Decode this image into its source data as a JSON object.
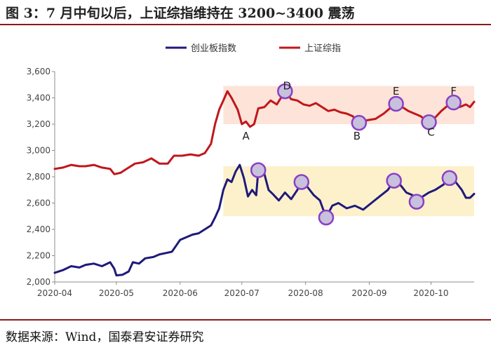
{
  "header": {
    "title": "图 3：7 月中旬以后，上证综指维持在 3200~3400 震荡"
  },
  "footer": {
    "source": "数据来源：Wind，国泰君安证券研究"
  },
  "colors": {
    "chinext": "#1f1a7a",
    "sse": "#c0171b",
    "sse_band": "#fde3d8",
    "chinext_band": "#fdf1cc",
    "marker": "#8a3fc4"
  },
  "chart_data": {
    "type": "line",
    "title": "",
    "xlabel": "",
    "ylabel": "",
    "ylim": [
      2000,
      3600
    ],
    "yticks": [
      2000,
      2200,
      2400,
      2600,
      2800,
      3000,
      3200,
      3400,
      3600
    ],
    "ytick_labels": [
      "2,000",
      "2,200",
      "2,400",
      "2,600",
      "2,800",
      "3,000",
      "3,200",
      "3,400",
      "3,600"
    ],
    "xlim": [
      "2020-04-01",
      "2020-10-22"
    ],
    "xticks": [
      "2020-04",
      "2020-05",
      "2020-06",
      "2020-07",
      "2020-08",
      "2020-09",
      "2020-10"
    ],
    "grid": false,
    "legend_position": "top",
    "bands": [
      {
        "start": "2020-06-22",
        "end": "2020-10-22",
        "low": 3200,
        "high": 3490,
        "color": "#fde3d8"
      },
      {
        "start": "2020-06-22",
        "end": "2020-10-22",
        "low": 2500,
        "high": 2880,
        "color": "#fdf1cc"
      }
    ],
    "annotations": [
      {
        "text": "A",
        "x": "2020-07-03",
        "y": 3110
      },
      {
        "text": "D",
        "x": "2020-07-23",
        "y": 3490
      },
      {
        "text": "B",
        "x": "2020-08-26",
        "y": 3110
      },
      {
        "text": "E",
        "x": "2020-09-14",
        "y": 3450
      },
      {
        "text": "C",
        "x": "2020-10-01",
        "y": 3140
      },
      {
        "text": "F",
        "x": "2020-10-12",
        "y": 3450
      }
    ],
    "markers": [
      {
        "series": "上证综指",
        "x": "2020-07-22",
        "y": 3450
      },
      {
        "series": "上证综指",
        "x": "2020-08-27",
        "y": 3210
      },
      {
        "series": "上证综指",
        "x": "2020-09-14",
        "y": 3355
      },
      {
        "series": "上证综指",
        "x": "2020-09-30",
        "y": 3215
      },
      {
        "series": "上证综指",
        "x": "2020-10-12",
        "y": 3365
      },
      {
        "series": "创业板指数",
        "x": "2020-07-09",
        "y": 2850
      },
      {
        "series": "创业板指数",
        "x": "2020-07-30",
        "y": 2760
      },
      {
        "series": "创业板指数",
        "x": "2020-08-11",
        "y": 2490
      },
      {
        "series": "创业板指数",
        "x": "2020-09-13",
        "y": 2770
      },
      {
        "series": "创业板指数",
        "x": "2020-09-24",
        "y": 2610
      },
      {
        "series": "创业板指数",
        "x": "2020-10-10",
        "y": 2790
      }
    ],
    "series": [
      {
        "name": "创业板指数",
        "color": "#1f1a7a",
        "points": [
          [
            "2020-04-01",
            2070
          ],
          [
            "2020-04-05",
            2090
          ],
          [
            "2020-04-09",
            2120
          ],
          [
            "2020-04-13",
            2110
          ],
          [
            "2020-04-16",
            2130
          ],
          [
            "2020-04-20",
            2140
          ],
          [
            "2020-04-24",
            2120
          ],
          [
            "2020-04-28",
            2150
          ],
          [
            "2020-04-30",
            2100
          ],
          [
            "2020-05-01",
            2050
          ],
          [
            "2020-05-04",
            2055
          ],
          [
            "2020-05-07",
            2080
          ],
          [
            "2020-05-09",
            2150
          ],
          [
            "2020-05-12",
            2140
          ],
          [
            "2020-05-15",
            2180
          ],
          [
            "2020-05-19",
            2190
          ],
          [
            "2020-05-22",
            2210
          ],
          [
            "2020-05-25",
            2220
          ],
          [
            "2020-05-28",
            2230
          ],
          [
            "2020-06-01",
            2320
          ],
          [
            "2020-06-04",
            2340
          ],
          [
            "2020-06-07",
            2360
          ],
          [
            "2020-06-10",
            2370
          ],
          [
            "2020-06-13",
            2400
          ],
          [
            "2020-06-16",
            2430
          ],
          [
            "2020-06-18",
            2490
          ],
          [
            "2020-06-20",
            2560
          ],
          [
            "2020-06-22",
            2700
          ],
          [
            "2020-06-24",
            2780
          ],
          [
            "2020-06-26",
            2760
          ],
          [
            "2020-06-28",
            2840
          ],
          [
            "2020-06-30",
            2890
          ],
          [
            "2020-07-02",
            2790
          ],
          [
            "2020-07-04",
            2650
          ],
          [
            "2020-07-06",
            2700
          ],
          [
            "2020-07-08",
            2660
          ],
          [
            "2020-07-09",
            2850
          ],
          [
            "2020-07-12",
            2820
          ],
          [
            "2020-07-14",
            2700
          ],
          [
            "2020-07-16",
            2670
          ],
          [
            "2020-07-19",
            2620
          ],
          [
            "2020-07-22",
            2680
          ],
          [
            "2020-07-25",
            2630
          ],
          [
            "2020-07-28",
            2700
          ],
          [
            "2020-07-30",
            2760
          ],
          [
            "2020-08-02",
            2720
          ],
          [
            "2020-08-05",
            2660
          ],
          [
            "2020-08-08",
            2620
          ],
          [
            "2020-08-11",
            2490
          ],
          [
            "2020-08-14",
            2580
          ],
          [
            "2020-08-17",
            2600
          ],
          [
            "2020-08-21",
            2560
          ],
          [
            "2020-08-25",
            2580
          ],
          [
            "2020-08-29",
            2550
          ],
          [
            "2020-09-02",
            2600
          ],
          [
            "2020-09-06",
            2650
          ],
          [
            "2020-09-10",
            2700
          ],
          [
            "2020-09-13",
            2770
          ],
          [
            "2020-09-16",
            2740
          ],
          [
            "2020-09-19",
            2680
          ],
          [
            "2020-09-22",
            2660
          ],
          [
            "2020-09-24",
            2610
          ],
          [
            "2020-09-27",
            2650
          ],
          [
            "2020-09-30",
            2680
          ],
          [
            "2020-10-03",
            2700
          ],
          [
            "2020-10-07",
            2740
          ],
          [
            "2020-10-10",
            2790
          ],
          [
            "2020-10-13",
            2760
          ],
          [
            "2020-10-16",
            2700
          ],
          [
            "2020-10-18",
            2640
          ],
          [
            "2020-10-20",
            2640
          ],
          [
            "2020-10-22",
            2670
          ]
        ]
      },
      {
        "name": "上证综指",
        "color": "#c0171b",
        "points": [
          [
            "2020-04-01",
            2860
          ],
          [
            "2020-04-05",
            2870
          ],
          [
            "2020-04-09",
            2890
          ],
          [
            "2020-04-13",
            2880
          ],
          [
            "2020-04-16",
            2880
          ],
          [
            "2020-04-20",
            2890
          ],
          [
            "2020-04-24",
            2870
          ],
          [
            "2020-04-28",
            2860
          ],
          [
            "2020-04-30",
            2820
          ],
          [
            "2020-05-03",
            2830
          ],
          [
            "2020-05-07",
            2870
          ],
          [
            "2020-05-10",
            2900
          ],
          [
            "2020-05-14",
            2910
          ],
          [
            "2020-05-18",
            2940
          ],
          [
            "2020-05-22",
            2900
          ],
          [
            "2020-05-26",
            2900
          ],
          [
            "2020-05-29",
            2960
          ],
          [
            "2020-06-02",
            2960
          ],
          [
            "2020-06-06",
            2970
          ],
          [
            "2020-06-10",
            2960
          ],
          [
            "2020-06-13",
            2980
          ],
          [
            "2020-06-16",
            3050
          ],
          [
            "2020-06-18",
            3200
          ],
          [
            "2020-06-20",
            3310
          ],
          [
            "2020-06-22",
            3380
          ],
          [
            "2020-06-24",
            3450
          ],
          [
            "2020-06-26",
            3400
          ],
          [
            "2020-06-29",
            3310
          ],
          [
            "2020-07-01",
            3200
          ],
          [
            "2020-07-03",
            3220
          ],
          [
            "2020-07-05",
            3180
          ],
          [
            "2020-07-07",
            3200
          ],
          [
            "2020-07-09",
            3320
          ],
          [
            "2020-07-12",
            3330
          ],
          [
            "2020-07-15",
            3380
          ],
          [
            "2020-07-18",
            3350
          ],
          [
            "2020-07-20",
            3400
          ],
          [
            "2020-07-22",
            3450
          ],
          [
            "2020-07-25",
            3390
          ],
          [
            "2020-07-28",
            3380
          ],
          [
            "2020-07-31",
            3350
          ],
          [
            "2020-08-03",
            3340
          ],
          [
            "2020-08-06",
            3360
          ],
          [
            "2020-08-09",
            3330
          ],
          [
            "2020-08-12",
            3300
          ],
          [
            "2020-08-15",
            3310
          ],
          [
            "2020-08-18",
            3290
          ],
          [
            "2020-08-21",
            3280
          ],
          [
            "2020-08-24",
            3260
          ],
          [
            "2020-08-27",
            3210
          ],
          [
            "2020-08-31",
            3230
          ],
          [
            "2020-09-04",
            3240
          ],
          [
            "2020-09-08",
            3280
          ],
          [
            "2020-09-11",
            3320
          ],
          [
            "2020-09-14",
            3355
          ],
          [
            "2020-09-17",
            3330
          ],
          [
            "2020-09-20",
            3300
          ],
          [
            "2020-09-23",
            3280
          ],
          [
            "2020-09-26",
            3260
          ],
          [
            "2020-09-30",
            3215
          ],
          [
            "2020-10-03",
            3250
          ],
          [
            "2020-10-06",
            3300
          ],
          [
            "2020-10-09",
            3340
          ],
          [
            "2020-10-12",
            3365
          ],
          [
            "2020-10-15",
            3330
          ],
          [
            "2020-10-18",
            3350
          ],
          [
            "2020-10-20",
            3330
          ],
          [
            "2020-10-22",
            3370
          ]
        ]
      }
    ]
  }
}
